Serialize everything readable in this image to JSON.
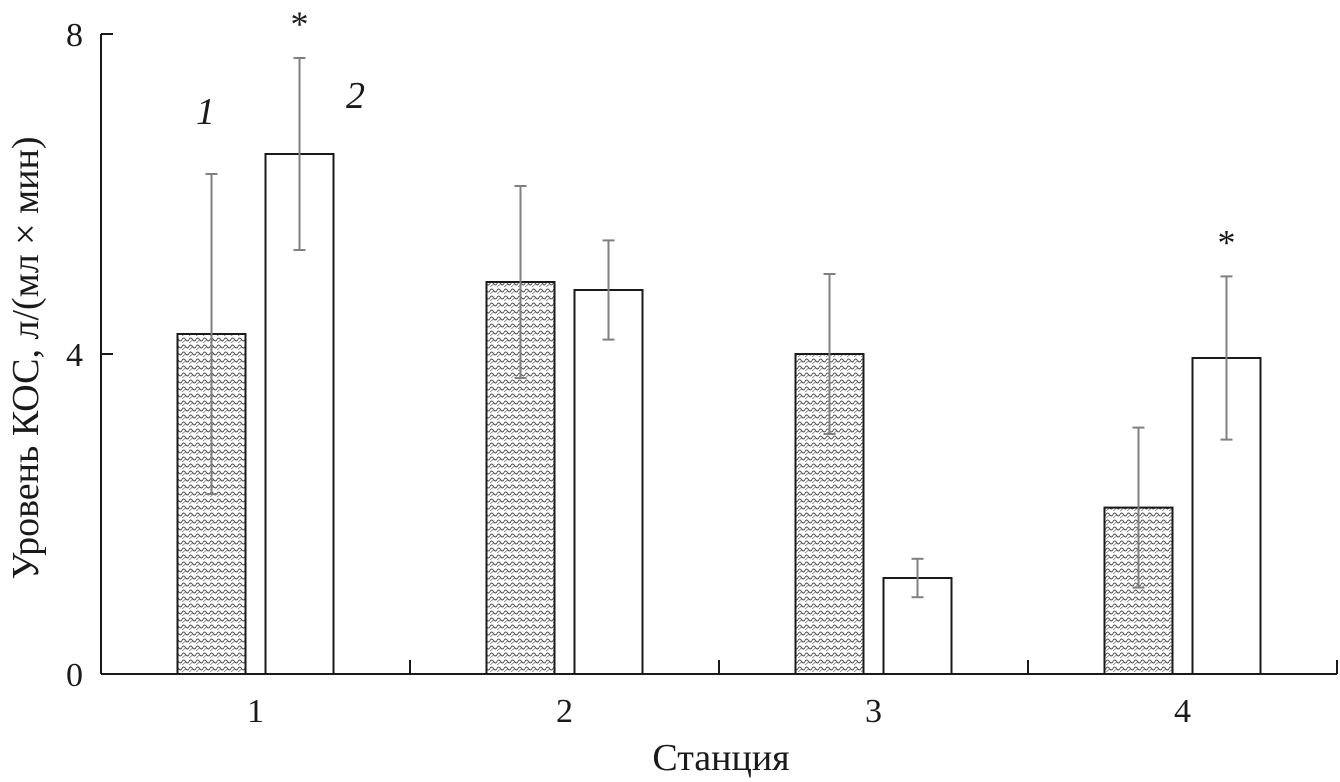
{
  "chart_data": {
    "type": "bar",
    "xlabel": "Станция",
    "ylabel": "Уровень КОС, л/(мл × мин)",
    "categories": [
      "1",
      "2",
      "3",
      "4"
    ],
    "ylim": [
      0,
      8
    ],
    "yticks": [
      0,
      4,
      8
    ],
    "grid": false,
    "legend": "none",
    "series": [
      {
        "name": "1",
        "fill": "hatched",
        "values": [
          4.25,
          4.9,
          4.0,
          2.08
        ],
        "error": [
          2.0,
          1.2,
          1.0,
          1.0
        ]
      },
      {
        "name": "2",
        "fill": "white",
        "values": [
          6.5,
          4.8,
          1.2,
          3.95
        ],
        "error": [
          1.2,
          0.62,
          0.24,
          1.02
        ]
      }
    ],
    "annotations": [
      {
        "text": "*",
        "category": "1",
        "series": "2"
      },
      {
        "text": "*",
        "category": "4",
        "series": "2"
      }
    ],
    "colors": {
      "bar_stroke": "#1a1a1a",
      "error_bar": "#808080",
      "hatch": "#555555"
    }
  }
}
